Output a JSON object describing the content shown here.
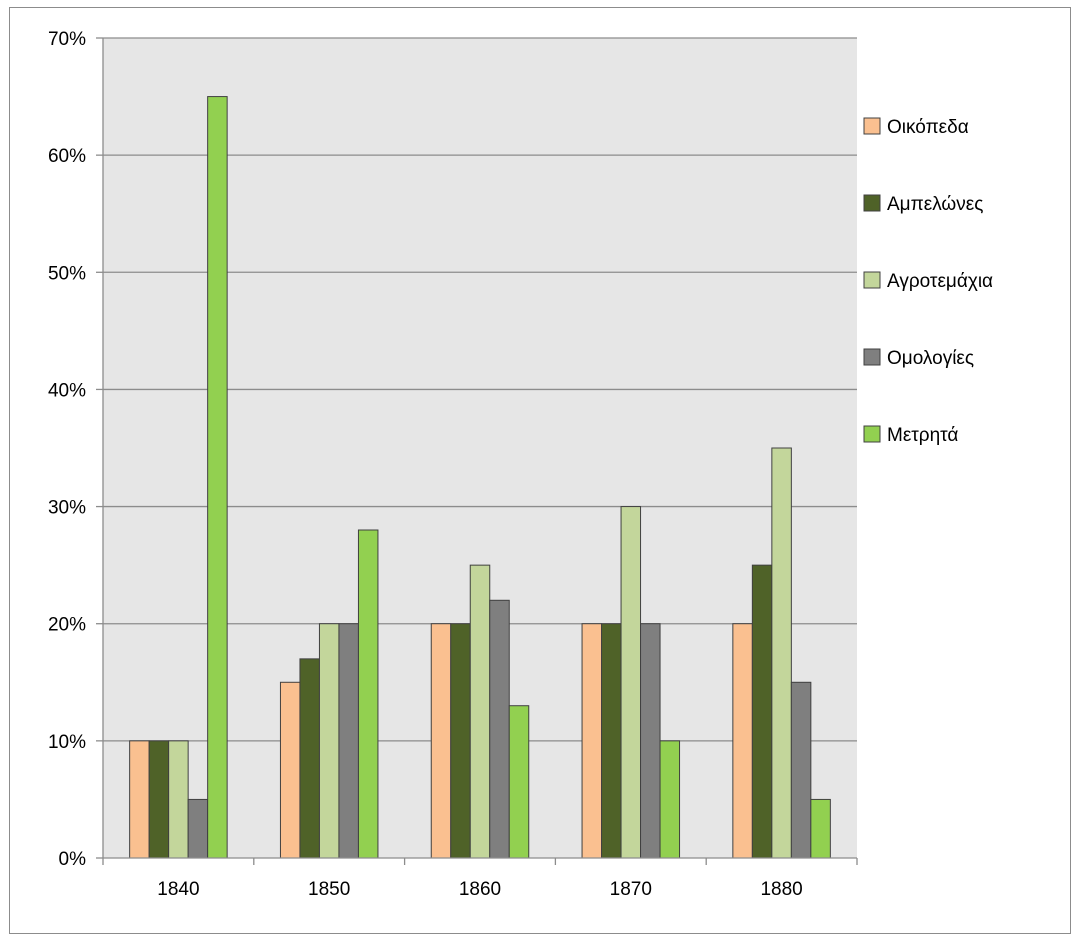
{
  "chart_data": {
    "type": "bar",
    "title": "",
    "xlabel": "",
    "ylabel": "",
    "categories": [
      "1840",
      "1850",
      "1860",
      "1870",
      "1880"
    ],
    "ylim": [
      0,
      70
    ],
    "yticks": [
      0,
      10,
      20,
      30,
      40,
      50,
      60,
      70
    ],
    "ytick_labels": [
      "0%",
      "10%",
      "20%",
      "30%",
      "40%",
      "50%",
      "60%",
      "70%"
    ],
    "grid": true,
    "legend_position": "right",
    "plot_background": "#e6e6e6",
    "series": [
      {
        "name": "Οικόπεδα",
        "color": "#fac090",
        "values": [
          10,
          15,
          20,
          20,
          20
        ]
      },
      {
        "name": "Αμπελώνες",
        "color": "#4f6228",
        "values": [
          10,
          17,
          20,
          20,
          25
        ]
      },
      {
        "name": "Αγροτεμάχια",
        "color": "#c3d69b",
        "values": [
          10,
          20,
          25,
          30,
          35
        ]
      },
      {
        "name": "Ομολογίες",
        "color": "#7f7f7f",
        "values": [
          5,
          20,
          22,
          20,
          15
        ]
      },
      {
        "name": "Μετρητά",
        "color": "#92d050",
        "values": [
          65,
          28,
          13,
          10,
          5
        ]
      }
    ]
  }
}
